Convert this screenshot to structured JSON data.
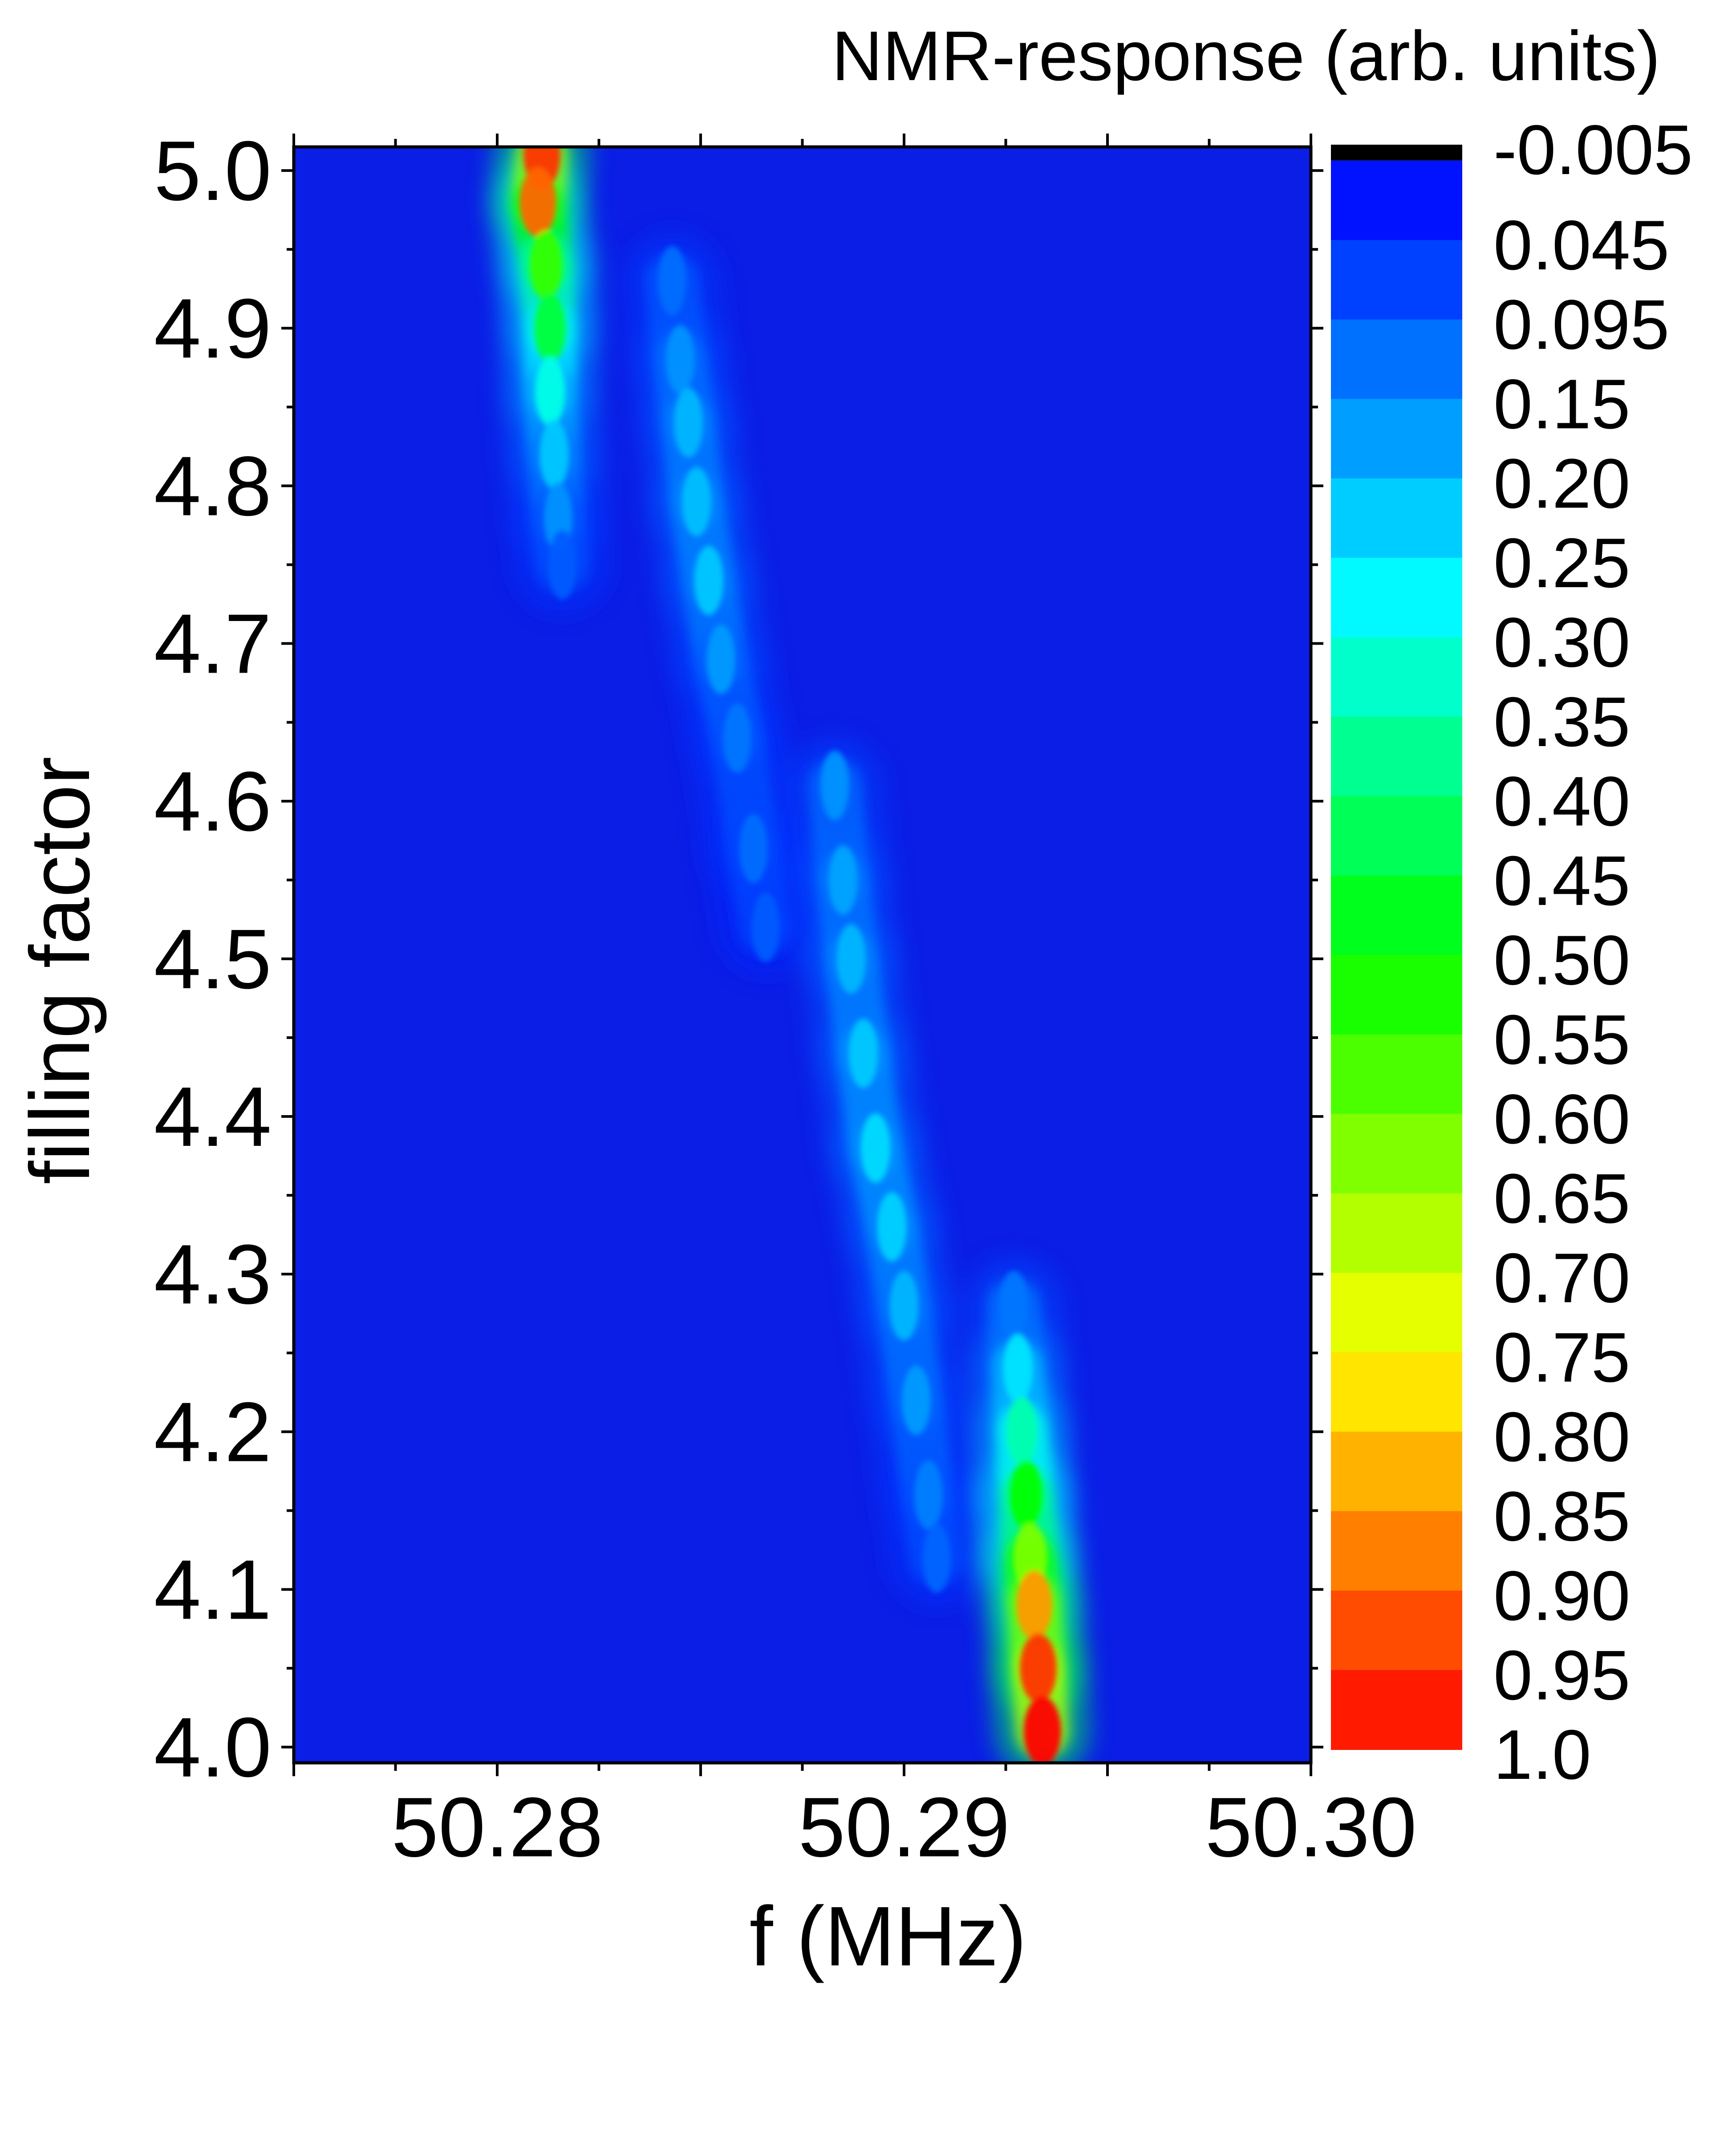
{
  "chart_data": {
    "type": "heatmap",
    "title": "",
    "xlabel": "f (MHz)",
    "ylabel": "filling factor",
    "colorbar_label": "NMR-response (arb. units)",
    "xlim": [
      50.275,
      50.3
    ],
    "ylim": [
      3.99,
      5.015
    ],
    "x_ticks": [
      {
        "value": 50.28,
        "label": "50.28"
      },
      {
        "value": 50.29,
        "label": "50.29"
      },
      {
        "value": 50.3,
        "label": "50.30"
      }
    ],
    "y_ticks": [
      {
        "value": 4.0,
        "label": "4.0"
      },
      {
        "value": 4.1,
        "label": "4.1"
      },
      {
        "value": 4.2,
        "label": "4.2"
      },
      {
        "value": 4.3,
        "label": "4.3"
      },
      {
        "value": 4.4,
        "label": "4.4"
      },
      {
        "value": 4.5,
        "label": "4.5"
      },
      {
        "value": 4.6,
        "label": "4.6"
      },
      {
        "value": 4.7,
        "label": "4.7"
      },
      {
        "value": 4.8,
        "label": "4.8"
      },
      {
        "value": 4.9,
        "label": "4.9"
      },
      {
        "value": 5.0,
        "label": "5.0"
      }
    ],
    "colorbar_levels": [
      "-0.005",
      "0.045",
      "0.095",
      "0.15",
      "0.20",
      "0.25",
      "0.30",
      "0.35",
      "0.40",
      "0.45",
      "0.50",
      "0.55",
      "0.60",
      "0.65",
      "0.70",
      "0.75",
      "0.80",
      "0.85",
      "0.90",
      "0.95",
      "1.0"
    ],
    "colormap": {
      "stops": [
        {
          "value": 0.0,
          "color": "#0000ff"
        },
        {
          "value": 0.28,
          "color": "#00ffff"
        },
        {
          "value": 0.5,
          "color": "#00ff00"
        },
        {
          "value": 0.75,
          "color": "#ffff00"
        },
        {
          "value": 1.0,
          "color": "#ff0000"
        }
      ],
      "below_min_color": "#000000",
      "background_color": "#0a1ee6"
    },
    "features": [
      {
        "name": "upper-left strong line",
        "points": [
          [
            50.2811,
            5.01,
            0.95
          ],
          [
            50.281,
            4.98,
            0.9
          ],
          [
            50.2812,
            4.94,
            0.55
          ],
          [
            50.2813,
            4.9,
            0.45
          ],
          [
            50.2813,
            4.86,
            0.3
          ],
          [
            50.2814,
            4.82,
            0.22
          ],
          [
            50.2815,
            4.78,
            0.16
          ],
          [
            50.2816,
            4.75,
            0.1
          ]
        ]
      },
      {
        "name": "second weak line",
        "points": [
          [
            50.2843,
            4.93,
            0.12
          ],
          [
            50.2845,
            4.88,
            0.16
          ],
          [
            50.2847,
            4.84,
            0.2
          ],
          [
            50.2849,
            4.79,
            0.21
          ],
          [
            50.2852,
            4.74,
            0.22
          ],
          [
            50.2855,
            4.69,
            0.17
          ],
          [
            50.2859,
            4.64,
            0.13
          ],
          [
            50.2863,
            4.57,
            0.12
          ],
          [
            50.2866,
            4.52,
            0.1
          ]
        ]
      },
      {
        "name": "central weak line",
        "points": [
          [
            50.2883,
            4.61,
            0.16
          ],
          [
            50.2885,
            4.55,
            0.18
          ],
          [
            50.2887,
            4.5,
            0.2
          ],
          [
            50.289,
            4.44,
            0.22
          ],
          [
            50.2893,
            4.38,
            0.24
          ],
          [
            50.2897,
            4.33,
            0.23
          ],
          [
            50.29,
            4.28,
            0.2
          ],
          [
            50.2903,
            4.22,
            0.17
          ],
          [
            50.2906,
            4.16,
            0.14
          ],
          [
            50.2908,
            4.12,
            0.11
          ]
        ]
      },
      {
        "name": "lower-right strong line",
        "points": [
          [
            50.2927,
            4.28,
            0.13
          ],
          [
            50.2928,
            4.24,
            0.25
          ],
          [
            50.2929,
            4.2,
            0.35
          ],
          [
            50.293,
            4.16,
            0.5
          ],
          [
            50.2931,
            4.12,
            0.62
          ],
          [
            50.2932,
            4.09,
            0.85
          ],
          [
            50.2933,
            4.05,
            0.95
          ],
          [
            50.2934,
            4.01,
            1.0
          ]
        ]
      }
    ]
  }
}
